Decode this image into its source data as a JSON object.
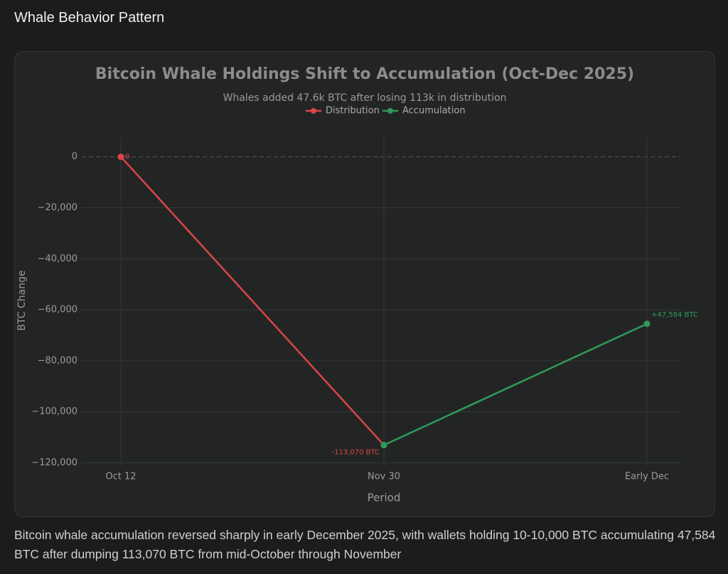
{
  "header": {
    "title": "Whale Behavior Pattern"
  },
  "chart_data": {
    "type": "line",
    "title": "Bitcoin Whale Holdings Shift to Accumulation (Oct-Dec 2025)",
    "subtitle": "Whales added 47.6k BTC after losing 113k in distribution",
    "x_label": "Period",
    "y_label": "BTC Change",
    "categories": [
      "Oct 12",
      "Nov 30",
      "Early Dec"
    ],
    "series": [
      {
        "name": "Distribution",
        "color": "#d9454a",
        "values": [
          0,
          -113070,
          null
        ],
        "value_labels": [
          "0",
          "-113,070 BTC",
          null
        ]
      },
      {
        "name": "Accumulation",
        "color": "#2e9a5b",
        "values": [
          null,
          -113070,
          -65486
        ]
      }
    ],
    "annotations": [
      "+47,584 BTC"
    ],
    "ylim": [
      -121000,
      8000
    ],
    "yticks": [
      {
        "value": -120000,
        "label": "−120,000"
      },
      {
        "value": -100000,
        "label": "−100,000"
      },
      {
        "value": -80000,
        "label": "−80,000"
      },
      {
        "value": -60000,
        "label": "−60,000"
      },
      {
        "value": -40000,
        "label": "−40,000"
      },
      {
        "value": -20000,
        "label": "−20,000"
      },
      0
    ],
    "grid": true
  },
  "caption": "Bitcoin whale accumulation reversed sharply in early December 2025, with wallets holding 10-10,000 BTC accumulating 47,584 BTC after dumping 113,070 BTC from mid-October through November"
}
